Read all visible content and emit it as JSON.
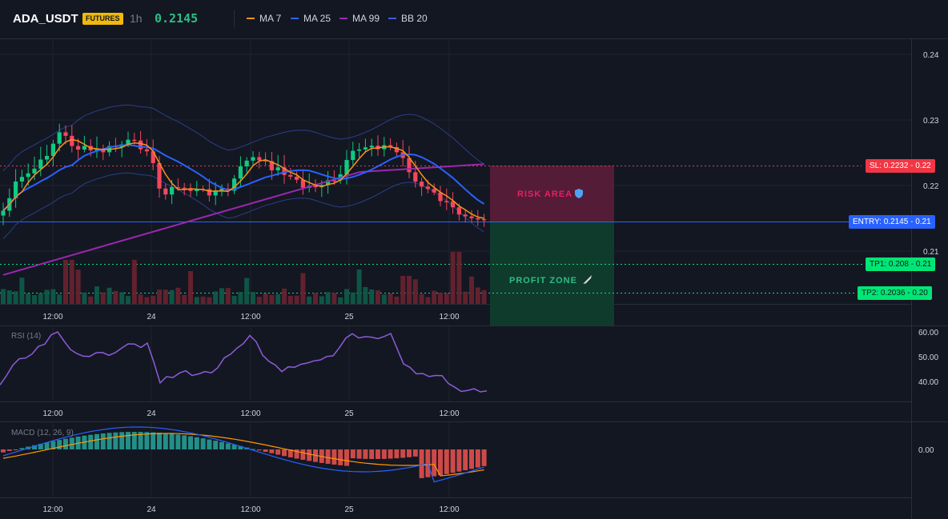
{
  "header": {
    "symbol": "ADA_USDT",
    "badge": "FUTURES",
    "timeframe": "1h",
    "price": "0.2145",
    "legend": [
      {
        "label": "MA 7",
        "color": "#f7931a"
      },
      {
        "label": "MA 25",
        "color": "#2962ff"
      },
      {
        "label": "MA 99",
        "color": "#9c27b0"
      },
      {
        "label": "BB 20",
        "color": "#1e3a8a"
      }
    ]
  },
  "main_chart": {
    "price_axis": [
      "0.24",
      "0.23",
      "0.22",
      "0.21"
    ],
    "time_axis": [
      "12:00",
      "24",
      "12:00",
      "25",
      "12:00"
    ],
    "levels": {
      "sl": {
        "text": "SL: 0.2232",
        "value": "0.22",
        "color": "#f23645"
      },
      "entry": {
        "text": "ENTRY: 0.2145",
        "value": "0.21",
        "color": "#2962ff"
      },
      "tp1": {
        "text": "TP1: 0.208",
        "value": "0.21",
        "color": "#00e676"
      },
      "tp2": {
        "text": "TP2: 0.2036",
        "value": "0.20",
        "color": "#00e676"
      }
    },
    "risk_label": "RISK AREA",
    "profit_label": "PROFIT ZONE",
    "risk_icon": "shield-icon",
    "profit_icon": "rocket-icon"
  },
  "rsi": {
    "label": "RSI (14)",
    "axis": [
      "60.00",
      "50.00",
      "40.00"
    ],
    "time_axis": [
      "12:00",
      "24",
      "12:00",
      "25",
      "12:00"
    ]
  },
  "macd": {
    "label": "MACD (12, 26, 9)",
    "axis": [
      "0.00"
    ],
    "time_axis": [
      "12:00",
      "24",
      "12:00",
      "25",
      "12:00"
    ]
  },
  "colors": {
    "up": "#0ecb81",
    "down": "#f6465d",
    "background": "#131722"
  }
}
